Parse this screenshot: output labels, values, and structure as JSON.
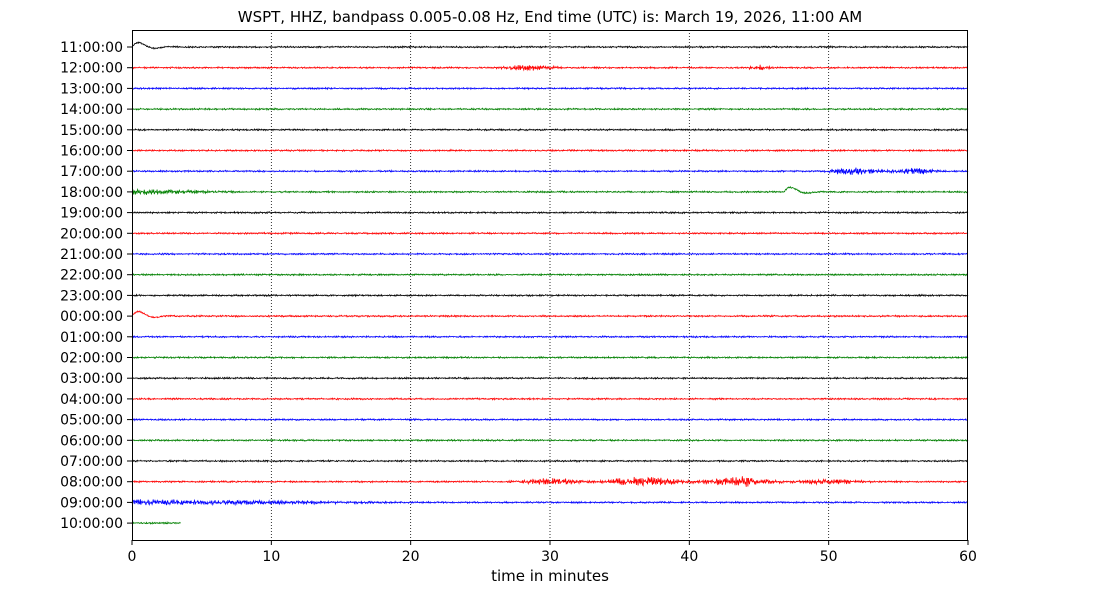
{
  "chart_data": {
    "type": "line",
    "title": "WSPT, HHZ, bandpass 0.005-0.08 Hz, End time (UTC) is: March 19, 2026, 11:00 AM",
    "xlabel": "time in minutes",
    "ylabel": "",
    "xlim": [
      0,
      60
    ],
    "xticks": [
      0,
      10,
      20,
      30,
      40,
      50,
      60
    ],
    "grid": "vertical dotted lines at 10-minute intervals",
    "rows": [
      {
        "label": "11:00:00",
        "color": "#000000",
        "end_minute": 60,
        "events": [
          {
            "start": 0,
            "end": 5,
            "kind": "long-period pulse"
          }
        ]
      },
      {
        "label": "12:00:00",
        "color": "#ff0000",
        "end_minute": 60,
        "events": [
          {
            "start": 26,
            "end": 31,
            "kind": "burst"
          },
          {
            "start": 44,
            "end": 46,
            "kind": "burst"
          }
        ]
      },
      {
        "label": "13:00:00",
        "color": "#0000ff",
        "end_minute": 60,
        "events": []
      },
      {
        "label": "14:00:00",
        "color": "#008000",
        "end_minute": 60,
        "events": []
      },
      {
        "label": "15:00:00",
        "color": "#000000",
        "end_minute": 60,
        "events": []
      },
      {
        "label": "16:00:00",
        "color": "#ff0000",
        "end_minute": 60,
        "events": []
      },
      {
        "label": "17:00:00",
        "color": "#0000ff",
        "end_minute": 60,
        "events": [
          {
            "start": 49.5,
            "end": 60,
            "kind": "surface waves"
          }
        ]
      },
      {
        "label": "18:00:00",
        "color": "#008000",
        "end_minute": 60,
        "events": [
          {
            "start": 0,
            "end": 8,
            "kind": "coda"
          },
          {
            "start": 46.8,
            "end": 51,
            "kind": "long-period pulse"
          }
        ]
      },
      {
        "label": "19:00:00",
        "color": "#000000",
        "end_minute": 60,
        "events": []
      },
      {
        "label": "20:00:00",
        "color": "#ff0000",
        "end_minute": 60,
        "events": []
      },
      {
        "label": "21:00:00",
        "color": "#0000ff",
        "end_minute": 60,
        "events": []
      },
      {
        "label": "22:00:00",
        "color": "#008000",
        "end_minute": 60,
        "events": []
      },
      {
        "label": "23:00:00",
        "color": "#000000",
        "end_minute": 60,
        "events": []
      },
      {
        "label": "00:00:00",
        "color": "#ff0000",
        "end_minute": 60,
        "events": [
          {
            "start": 0,
            "end": 3,
            "kind": "long-period pulse"
          }
        ]
      },
      {
        "label": "01:00:00",
        "color": "#0000ff",
        "end_minute": 60,
        "events": []
      },
      {
        "label": "02:00:00",
        "color": "#008000",
        "end_minute": 60,
        "events": []
      },
      {
        "label": "03:00:00",
        "color": "#000000",
        "end_minute": 60,
        "events": []
      },
      {
        "label": "04:00:00",
        "color": "#ff0000",
        "end_minute": 60,
        "events": []
      },
      {
        "label": "05:00:00",
        "color": "#0000ff",
        "end_minute": 60,
        "events": []
      },
      {
        "label": "06:00:00",
        "color": "#008000",
        "end_minute": 60,
        "events": []
      },
      {
        "label": "07:00:00",
        "color": "#000000",
        "end_minute": 60,
        "events": []
      },
      {
        "label": "08:00:00",
        "color": "#ff0000",
        "end_minute": 60,
        "events": [
          {
            "start": 25,
            "end": 60,
            "kind": "surface waves"
          }
        ]
      },
      {
        "label": "09:00:00",
        "color": "#0000ff",
        "end_minute": 60,
        "events": [
          {
            "start": 0,
            "end": 20,
            "kind": "coda"
          }
        ]
      },
      {
        "label": "10:00:00",
        "color": "#008000",
        "end_minute": 3.5,
        "events": []
      }
    ]
  }
}
